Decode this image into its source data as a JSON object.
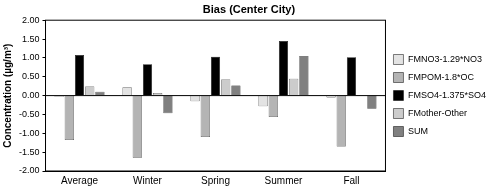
{
  "chart_data": {
    "type": "bar",
    "title": "Bias (Center City)",
    "ylabel": "Concentration (µg/m³)",
    "categories": [
      "Average",
      "Winter",
      "Spring",
      "Summer",
      "Fall"
    ],
    "series": [
      {
        "name": "FMNO3-1.29*NO3",
        "color": "#e3e3e3",
        "values": [
          -0.03,
          0.22,
          -0.15,
          -0.28,
          -0.05
        ]
      },
      {
        "name": "FMPOM-1.8*OC",
        "color": "#b4b4b4",
        "values": [
          -1.18,
          -1.65,
          -1.1,
          -0.57,
          -1.35
        ]
      },
      {
        "name": "FMSO4-1.375*SO4",
        "color": "#000000",
        "values": [
          1.08,
          0.83,
          1.03,
          1.45,
          1.02
        ]
      },
      {
        "name": "FMother-Other",
        "color": "#cccccc",
        "values": [
          0.24,
          0.07,
          0.43,
          0.45,
          0.01
        ]
      },
      {
        "name": "SUM",
        "color": "#808080",
        "values": [
          0.1,
          -0.47,
          0.27,
          1.05,
          -0.35
        ]
      }
    ],
    "ylim": [
      -2,
      2
    ],
    "yticks": [
      {
        "value": -2,
        "label": "-2.00"
      },
      {
        "value": -1.5,
        "label": "-1.50"
      },
      {
        "value": -1,
        "label": "-1.00"
      },
      {
        "value": -0.5,
        "label": "-0.50"
      },
      {
        "value": 0,
        "label": "0.00"
      },
      {
        "value": 0.5,
        "label": "0.50"
      },
      {
        "value": 1,
        "label": "1.00"
      },
      {
        "value": 1.5,
        "label": "1.50"
      },
      {
        "value": 2,
        "label": "2.00"
      }
    ],
    "grid": false,
    "legend": "right"
  }
}
